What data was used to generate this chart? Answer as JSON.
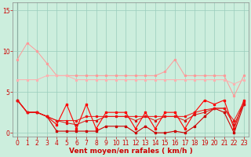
{
  "x": [
    0,
    1,
    2,
    3,
    4,
    5,
    6,
    7,
    8,
    9,
    10,
    11,
    12,
    13,
    14,
    15,
    16,
    17,
    18,
    19,
    20,
    21,
    22,
    23
  ],
  "series": {
    "pink_top": [
      9,
      11,
      10,
      8.5,
      7,
      7,
      7,
      7,
      7,
      7,
      7,
      7,
      7,
      7,
      7,
      7.5,
      9,
      7,
      7,
      7,
      7,
      7,
      4.5,
      7
    ],
    "pink_bot": [
      6.5,
      6.5,
      6.5,
      7,
      7,
      7,
      6.5,
      6.5,
      6.5,
      6.5,
      6.5,
      6.5,
      6.5,
      6.5,
      6.5,
      6.5,
      6.5,
      6.5,
      6.5,
      6.5,
      6.5,
      6.5,
      6.0,
      6.5
    ],
    "red_zigzag": [
      4,
      2.5,
      2.5,
      2,
      1,
      3.5,
      0.5,
      3.5,
      0.5,
      2.5,
      2.5,
      2.5,
      0.5,
      2.5,
      0.5,
      2.5,
      2.5,
      0.5,
      2.5,
      4,
      3.5,
      4,
      0.5,
      4
    ],
    "red_low": [
      4,
      2.5,
      2.5,
      2,
      0.2,
      0.2,
      0.2,
      0.2,
      0.2,
      0.8,
      0.8,
      0.8,
      0,
      0.8,
      0,
      0,
      0.2,
      0,
      0.8,
      2,
      3,
      2.5,
      0,
      3.5
    ],
    "red_rising1": [
      4,
      2.5,
      2.5,
      2,
      1.5,
      1.2,
      1.0,
      1.5,
      1.5,
      2,
      2,
      2,
      1.5,
      2,
      1.5,
      2,
      2,
      1.5,
      2.2,
      2.5,
      3,
      3,
      1,
      3.5
    ],
    "red_rising2": [
      4,
      2.5,
      2.5,
      2,
      1.5,
      1.5,
      1.5,
      2,
      2,
      2,
      2,
      2,
      2,
      2,
      2,
      2,
      2,
      2,
      2.5,
      2.8,
      3,
      3,
      1.5,
      3.8
    ]
  },
  "colors": {
    "pink_top": "#FF9999",
    "pink_bot": "#FFB0B0",
    "red_zigzag": "#FF0000",
    "red_low": "#CC0000",
    "red_rising1": "#DD1111",
    "red_rising2": "#EE1111"
  },
  "bg_color": "#CCEEDD",
  "grid_color": "#99CCBB",
  "xlabel": "Vent moyen/en rafales ( km/h )",
  "ylim": [
    -0.5,
    16
  ],
  "yticks": [
    0,
    5,
    10,
    15
  ],
  "xticks": [
    0,
    1,
    2,
    3,
    4,
    5,
    6,
    7,
    8,
    9,
    10,
    11,
    12,
    13,
    14,
    15,
    16,
    17,
    18,
    19,
    20,
    21,
    22,
    23
  ],
  "axis_color": "#CC0000",
  "label_fontsize": 5.5,
  "ylabel_fontsize": 5.5,
  "xlabel_fontsize": 6.5
}
